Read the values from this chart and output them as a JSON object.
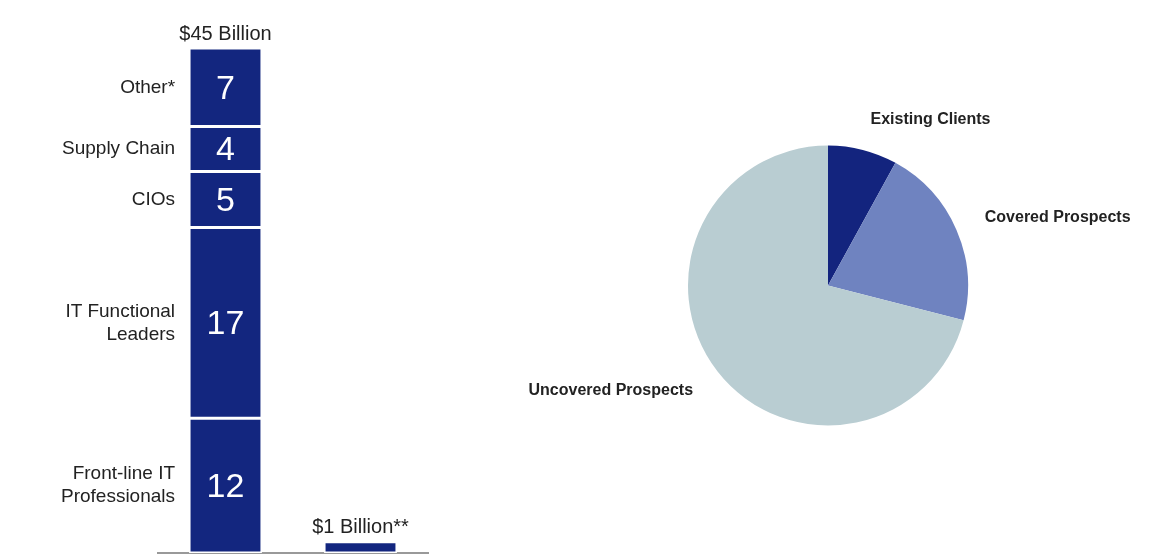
{
  "chart_data": [
    {
      "type": "bar",
      "stacked": true,
      "categories": [
        null,
        null
      ],
      "series": [
        {
          "name": "Front-line IT Professionals",
          "color": "#13267f",
          "values": [
            12,
            null
          ],
          "value_labels": [
            "12",
            null
          ]
        },
        {
          "name": "IT Functional Leaders",
          "color": "#13267f",
          "values": [
            17,
            null
          ],
          "value_labels": [
            "17",
            null
          ]
        },
        {
          "name": "CIOs",
          "color": "#13267f",
          "values": [
            5,
            null
          ],
          "value_labels": [
            "5",
            null
          ]
        },
        {
          "name": "Supply Chain",
          "color": "#13267f",
          "values": [
            4,
            null
          ],
          "value_labels": [
            "4",
            null
          ]
        },
        {
          "name": "Other*",
          "color": "#13267f",
          "values": [
            7,
            null
          ],
          "value_labels": [
            "7",
            null
          ]
        },
        {
          "color": "#13267f",
          "values": [
            null,
            1
          ]
        }
      ],
      "totals": [
        "$45 Billion",
        "$1 Billion**"
      ],
      "legend": false,
      "grid": false,
      "tick_labels": false
    },
    {
      "type": "pie",
      "categories": [
        "Existing Clients",
        "Covered Prospects",
        "Uncovered Prospects"
      ],
      "values": [
        8,
        21,
        71
      ],
      "colors": [
        "#13247e",
        "#6f83c0",
        "#b9cdd2"
      ],
      "legend": false
    }
  ]
}
